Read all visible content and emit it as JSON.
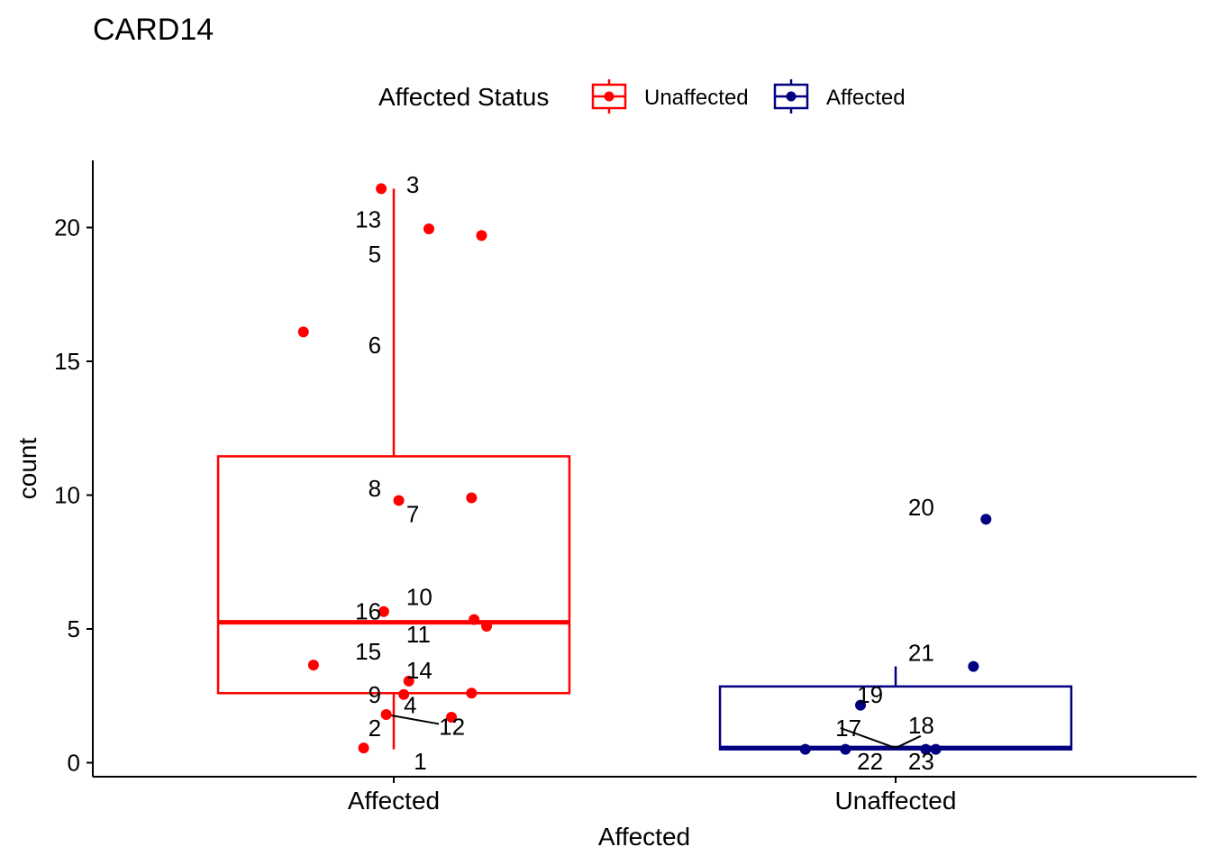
{
  "chart_data": {
    "type": "boxplot",
    "title": "CARD14",
    "xlabel": "Affected",
    "ylabel": "count",
    "ylim": [
      -0.5,
      22.5
    ],
    "yticks": [
      0,
      5,
      10,
      15,
      20
    ],
    "categories": [
      "Affected",
      "Unaffected"
    ],
    "legend": {
      "title": "Affected Status",
      "position": "top",
      "entries": [
        {
          "label": "Unaffected",
          "color": "#FF0000"
        },
        {
          "label": "Affected",
          "color": "#000080"
        }
      ]
    },
    "boxes": [
      {
        "category": "Affected",
        "color": "#FF0000",
        "q1": 2.6,
        "median": 5.25,
        "q3": 11.45,
        "whisker_low": 0.5,
        "whisker_high": 21.45
      },
      {
        "category": "Unaffected",
        "color": "#000080",
        "q1": 0.5,
        "median": 0.55,
        "q3": 2.85,
        "whisker_low": 0.5,
        "whisker_high": 3.6
      }
    ],
    "points": [
      {
        "category": "Affected",
        "jitter": -0.06,
        "y": 0.55,
        "color": "#FF0000"
      },
      {
        "category": "Affected",
        "jitter": -0.015,
        "y": 1.8,
        "color": "#FF0000"
      },
      {
        "category": "Affected",
        "jitter": -0.025,
        "y": 21.45,
        "color": "#FF0000"
      },
      {
        "category": "Affected",
        "jitter": 0.02,
        "y": 2.55,
        "color": "#FF0000"
      },
      {
        "category": "Affected",
        "jitter": 0.07,
        "y": 19.95,
        "color": "#FF0000"
      },
      {
        "category": "Affected",
        "jitter": -0.18,
        "y": 16.1,
        "color": "#FF0000"
      },
      {
        "category": "Affected",
        "jitter": 0.155,
        "y": 9.9,
        "color": "#FF0000"
      },
      {
        "category": "Affected",
        "jitter": 0.01,
        "y": 9.8,
        "color": "#FF0000"
      },
      {
        "category": "Affected",
        "jitter": 0.155,
        "y": 2.6,
        "color": "#FF0000"
      },
      {
        "category": "Affected",
        "jitter": 0.16,
        "y": 5.35,
        "color": "#FF0000"
      },
      {
        "category": "Affected",
        "jitter": 0.185,
        "y": 5.1,
        "color": "#FF0000"
      },
      {
        "category": "Affected",
        "jitter": 0.115,
        "y": 1.7,
        "color": "#FF0000"
      },
      {
        "category": "Affected",
        "jitter": 0.175,
        "y": 19.7,
        "color": "#FF0000"
      },
      {
        "category": "Affected",
        "jitter": 0.03,
        "y": 3.05,
        "color": "#FF0000"
      },
      {
        "category": "Affected",
        "jitter": -0.16,
        "y": 3.65,
        "color": "#FF0000"
      },
      {
        "category": "Affected",
        "jitter": -0.02,
        "y": 5.65,
        "color": "#FF0000"
      },
      {
        "category": "Unaffected",
        "jitter": -0.18,
        "y": 0.5,
        "color": "#000080"
      },
      {
        "category": "Unaffected",
        "jitter": 0.06,
        "y": 0.5,
        "color": "#000080"
      },
      {
        "category": "Unaffected",
        "jitter": -0.07,
        "y": 2.15,
        "color": "#000080"
      },
      {
        "category": "Unaffected",
        "jitter": 0.18,
        "y": 9.1,
        "color": "#000080"
      },
      {
        "category": "Unaffected",
        "jitter": 0.155,
        "y": 3.6,
        "color": "#000080"
      },
      {
        "category": "Unaffected",
        "jitter": -0.1,
        "y": 0.5,
        "color": "#000080"
      },
      {
        "category": "Unaffected",
        "jitter": 0.08,
        "y": 0.5,
        "color": "#000080"
      }
    ],
    "point_labels": [
      {
        "text": "1",
        "category": "Affected",
        "dx": 0.04,
        "y": 0.05,
        "anchor": "start"
      },
      {
        "text": "2",
        "category": "Affected",
        "dx": -0.025,
        "y": 1.3,
        "anchor": "end"
      },
      {
        "text": "3",
        "category": "Affected",
        "dx": 0.025,
        "y": 21.6,
        "anchor": "start"
      },
      {
        "text": "4",
        "category": "Affected",
        "dx": 0.02,
        "y": 2.15,
        "anchor": "start"
      },
      {
        "text": "5",
        "category": "Affected",
        "dx": -0.025,
        "y": 19.0,
        "anchor": "end"
      },
      {
        "text": "6",
        "category": "Affected",
        "dx": -0.025,
        "y": 15.6,
        "anchor": "end"
      },
      {
        "text": "7",
        "category": "Affected",
        "dx": 0.025,
        "y": 9.3,
        "anchor": "start"
      },
      {
        "text": "8",
        "category": "Affected",
        "dx": -0.025,
        "y": 10.25,
        "anchor": "end"
      },
      {
        "text": "9",
        "category": "Affected",
        "dx": -0.025,
        "y": 2.55,
        "anchor": "end"
      },
      {
        "text": "10",
        "category": "Affected",
        "dx": 0.025,
        "y": 6.2,
        "anchor": "start"
      },
      {
        "text": "11",
        "category": "Affected",
        "dx": 0.025,
        "y": 4.8,
        "anchor": "start"
      },
      {
        "text": "12",
        "category": "Affected",
        "dx": 0.09,
        "y": 1.35,
        "anchor": "start"
      },
      {
        "text": "13",
        "category": "Affected",
        "dx": -0.025,
        "y": 20.3,
        "anchor": "end"
      },
      {
        "text": "14",
        "category": "Affected",
        "dx": 0.025,
        "y": 3.45,
        "anchor": "start"
      },
      {
        "text": "15",
        "category": "Affected",
        "dx": -0.025,
        "y": 4.15,
        "anchor": "end"
      },
      {
        "text": "16",
        "category": "Affected",
        "dx": -0.025,
        "y": 5.65,
        "anchor": "end"
      },
      {
        "text": "17",
        "category": "Unaffected",
        "dx": -0.12,
        "y": 1.3,
        "anchor": "start"
      },
      {
        "text": "18",
        "category": "Unaffected",
        "dx": 0.025,
        "y": 1.4,
        "anchor": "start"
      },
      {
        "text": "19",
        "category": "Unaffected",
        "dx": -0.025,
        "y": 2.55,
        "anchor": "end"
      },
      {
        "text": "20",
        "category": "Unaffected",
        "dx": 0.025,
        "y": 9.55,
        "anchor": "start"
      },
      {
        "text": "21",
        "category": "Unaffected",
        "dx": 0.025,
        "y": 4.1,
        "anchor": "start"
      },
      {
        "text": "22",
        "category": "Unaffected",
        "dx": -0.025,
        "y": 0.05,
        "anchor": "end"
      },
      {
        "text": "23",
        "category": "Unaffected",
        "dx": 0.025,
        "y": 0.05,
        "anchor": "start"
      }
    ],
    "leader_lines": [
      {
        "from_category": "Affected",
        "from_dx": -0.015,
        "from_y": 1.8,
        "to_category": "Affected",
        "to_dx": 0.09,
        "to_y": 1.45
      },
      {
        "from_category": "Unaffected",
        "from_dx": -0.11,
        "from_y": 1.3,
        "to_category": "Unaffected",
        "to_dx": 0.0,
        "to_y": 0.55
      },
      {
        "from_category": "Unaffected",
        "from_dx": 0.05,
        "from_y": 1.0,
        "to_category": "Unaffected",
        "to_dx": 0.0,
        "to_y": 0.55
      }
    ]
  }
}
